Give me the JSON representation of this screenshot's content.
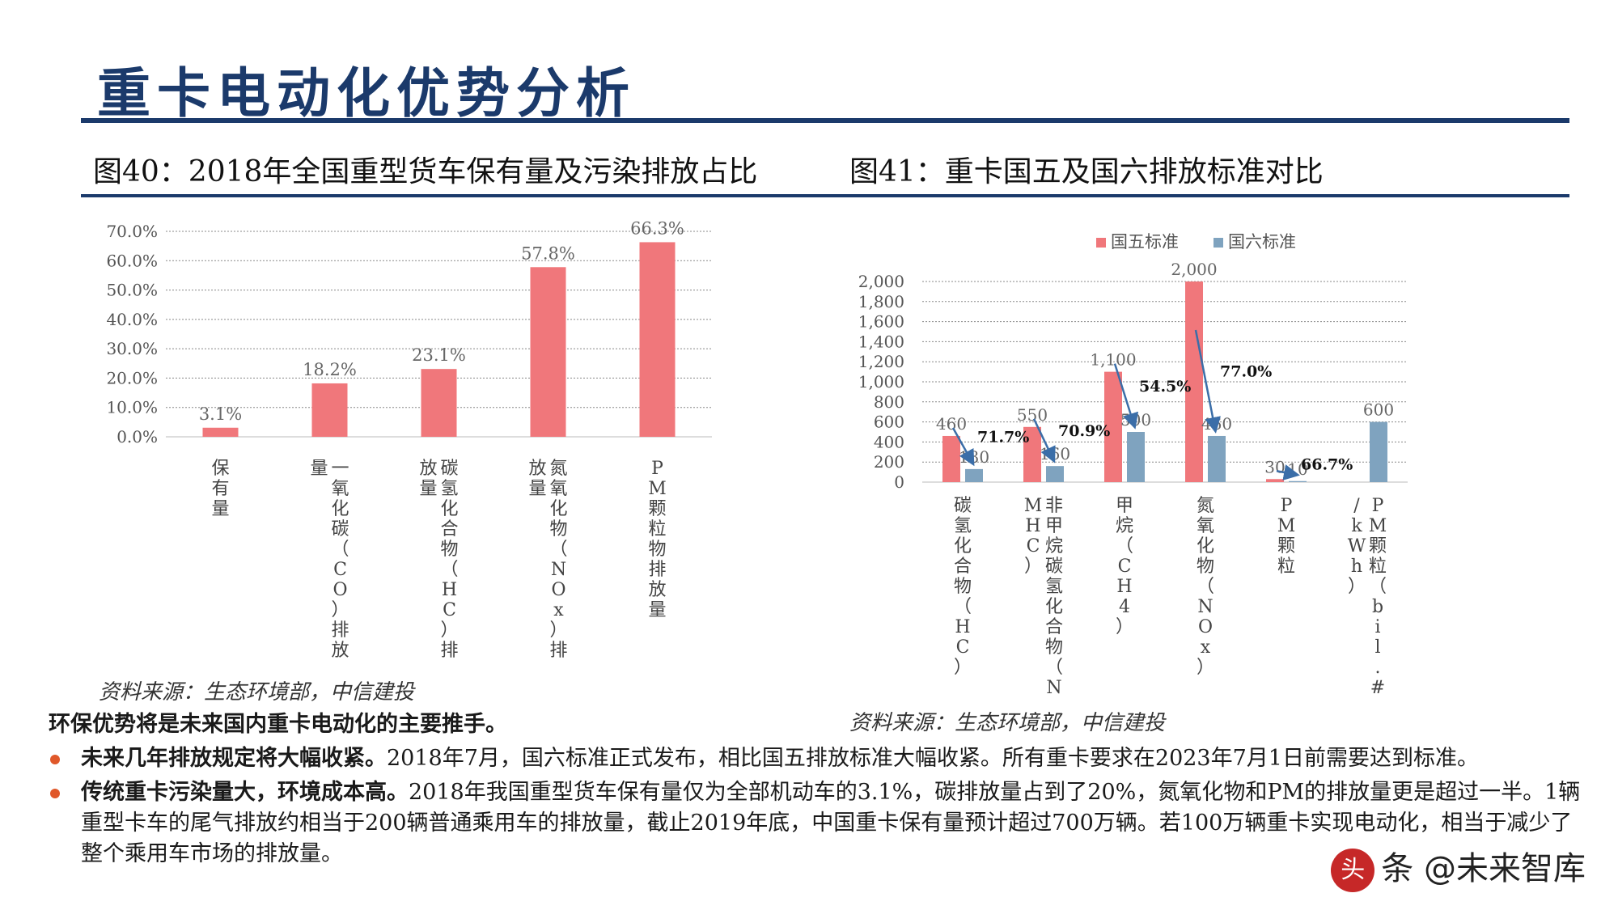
{
  "page": {
    "title": "重卡电动化优势分析"
  },
  "figure40": {
    "caption": "图40：2018年全国重型货车保有量及污染排放占比",
    "source": "资料来源：生态环境部，中信建投"
  },
  "figure41": {
    "caption": "图41：重卡国五及国六排放标准对比",
    "source": "资料来源：生态环境部，中信建投"
  },
  "text": {
    "lead": "环保优势将是未来国内重卡电动化的主要推手。",
    "bullets": [
      {
        "bold": "未来几年排放规定将大幅收紧。",
        "body": "2018年7月，国六标准正式发布，相比国五排放标准大幅收紧。所有重卡要求在2023年7月1日前需要达到标准。"
      },
      {
        "bold": "传统重卡污染量大，环境成本高。",
        "body": "2018年我国重型货车保有量仅为全部机动车的3.1%，碳排放量占到了20%，氮氧化物和PM的排放量更是超过一半。1辆重型卡车的尾气排放约相当于200辆普通乘用车的排放量，截止2019年底，中国重卡保有量预计超过700万辆。若100万辆重卡实现电动化，相当于减少了整个乘用车市场的排放量。"
      }
    ]
  },
  "watermark": {
    "logo_char": "头",
    "text": "条 @未来智库"
  },
  "colors": {
    "title_blue": "#1b3a6b",
    "bar_red": "#f0777b",
    "bar_blue": "#7fa3bf",
    "arrow_blue": "#3b6ea8",
    "bullet_orange": "#e0582a"
  },
  "chart_data": [
    {
      "type": "bar",
      "categories": [
        "保有量",
        "一氧化碳（CO）排放量",
        "碳氢化合物（HC）排放量",
        "氮氧化物（NOx）排放量",
        "PM颗粒物排放量"
      ],
      "values": [
        3.1,
        18.2,
        23.1,
        57.8,
        66.3
      ],
      "value_labels": [
        "3.1%",
        "18.2%",
        "23.1%",
        "57.8%",
        "66.3%"
      ],
      "yticks": [
        "0.0%",
        "10.0%",
        "20.0%",
        "30.0%",
        "40.0%",
        "50.0%",
        "60.0%",
        "70.0%"
      ],
      "ylim": [
        0,
        70
      ],
      "grid": true,
      "color": "#f0777b"
    },
    {
      "type": "bar",
      "categories": [
        "碳氢化合物（HC）",
        "非甲烷碳氢化合物（NMHC）",
        "甲烷（CH4）",
        "氮氧化物（NOx）",
        "PM颗粒",
        "PM颗粒（bil.#/kWh）"
      ],
      "series": [
        {
          "name": "国五标准",
          "values": [
            460,
            550,
            1100,
            2000,
            30,
            null
          ],
          "labels": [
            "460",
            "550",
            "1,100",
            "2,000",
            "30",
            ""
          ],
          "color": "#f0777b"
        },
        {
          "name": "国六标准",
          "values": [
            130,
            160,
            500,
            460,
            10,
            600
          ],
          "labels": [
            "130",
            "160",
            "500",
            "460",
            "10",
            "600"
          ],
          "color": "#7fa3bf"
        }
      ],
      "reductions": [
        "71.7%",
        "70.9%",
        "54.5%",
        "77.0%",
        "66.7%"
      ],
      "yticks": [
        "0",
        "200",
        "400",
        "600",
        "800",
        "1,000",
        "1,200",
        "1,400",
        "1,600",
        "1,800",
        "2,000"
      ],
      "ylim": [
        0,
        2000
      ],
      "legend": "top",
      "grid": true
    }
  ]
}
